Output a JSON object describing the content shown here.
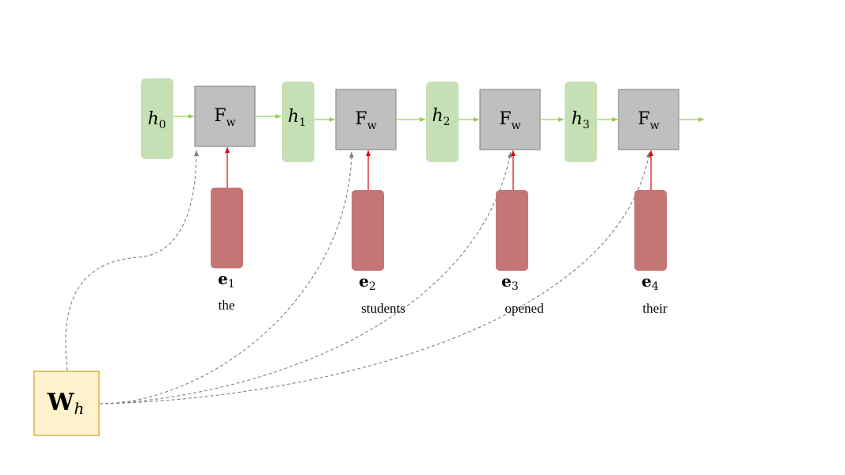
{
  "states": [
    {
      "base": "h",
      "sub": "0"
    },
    {
      "base": "h",
      "sub": "1"
    },
    {
      "base": "h",
      "sub": "2"
    },
    {
      "base": "h",
      "sub": "3"
    }
  ],
  "functions": [
    {
      "base": "F",
      "sub": "w"
    },
    {
      "base": "F",
      "sub": "w"
    },
    {
      "base": "F",
      "sub": "w"
    },
    {
      "base": "F",
      "sub": "w"
    }
  ],
  "embeddings": [
    {
      "base": "e",
      "sub": "1",
      "word": "the"
    },
    {
      "base": "e",
      "sub": "2",
      "word": "students"
    },
    {
      "base": "e",
      "sub": "3",
      "word": "opened"
    },
    {
      "base": "e",
      "sub": "4",
      "word": "their"
    }
  ],
  "weight": {
    "base": "W",
    "sub": "h"
  },
  "colors": {
    "state_fill": "#c5e0b4",
    "function_fill": "#bfbfbf",
    "embedding_fill": "#c47674",
    "weight_fill": "#fff2cc",
    "flow_arrow": "#92d050",
    "input_arrow": "#e00000",
    "weight_link": "#7f7f7f"
  }
}
